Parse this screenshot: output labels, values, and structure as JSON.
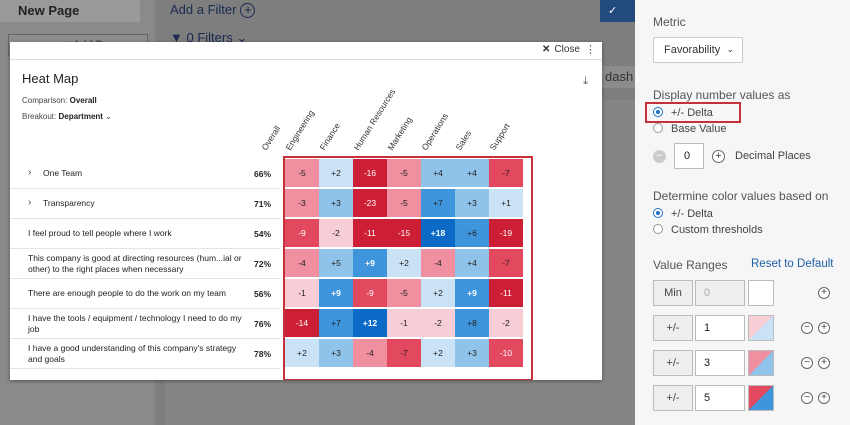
{
  "background": {
    "page_name": "New Page",
    "add_page": "+ Add Page",
    "add_filter": "Add a Filter",
    "filters": "0 Filters",
    "dash_text": "dash"
  },
  "modal": {
    "close_label": "Close",
    "title": "Heat Map",
    "comparison_label": "Comparison:",
    "comparison_value": "Overall",
    "breakout_label": "Breakout:",
    "breakout_value": "Department",
    "columns": [
      "Overall",
      "Engineering",
      "Finance",
      "Human Resources",
      "Marketing",
      "Operations",
      "Sales",
      "Support"
    ],
    "rows": [
      {
        "label": "One Team",
        "expandable": true,
        "overall": "66%",
        "values": [
          "-5",
          "+2",
          "-16",
          "-5",
          "+4",
          "+4",
          "-7"
        ]
      },
      {
        "label": "Transparency",
        "expandable": true,
        "overall": "71%",
        "values": [
          "-3",
          "+3",
          "-23",
          "-5",
          "+7",
          "+3",
          "+1"
        ]
      },
      {
        "label": "I feel proud to tell people where I work",
        "expandable": false,
        "overall": "54%",
        "values": [
          "-9",
          "-2",
          "-11",
          "-15",
          "+18",
          "+6",
          "-19"
        ]
      },
      {
        "label": "This company is good at directing resources (hum...ial or other) to the right places when necessary",
        "expandable": false,
        "overall": "72%",
        "values": [
          "-4",
          "+5",
          "+9",
          "+2",
          "-4",
          "+4",
          "-7"
        ]
      },
      {
        "label": "There are enough people to do the work on my team",
        "expandable": false,
        "overall": "56%",
        "values": [
          "-1",
          "+9",
          "-9",
          "-5",
          "+2",
          "+9",
          "-11"
        ]
      },
      {
        "label": "I have the tools / equipment / technology I need to do my job",
        "expandable": false,
        "overall": "76%",
        "values": [
          "-14",
          "+7",
          "+12",
          "-1",
          "-2",
          "+8",
          "-2"
        ]
      },
      {
        "label": "I have a good understanding of this company's strategy and goals",
        "expandable": false,
        "overall": "78%",
        "values": [
          "+2",
          "+3",
          "-4",
          "-7",
          "+2",
          "+3",
          "-10"
        ]
      }
    ]
  },
  "panel": {
    "metric_label": "Metric",
    "metric_value": "Favorability",
    "display_label": "Display number values as",
    "display_options": [
      "+/- Delta",
      "Base Value"
    ],
    "decimal_value": "0",
    "decimal_label": "Decimal Places",
    "color_label": "Determine color values based on",
    "color_options": [
      "+/- Delta",
      "Custom thresholds"
    ],
    "ranges_label": "Value Ranges",
    "reset_label": "Reset to Default",
    "ranges": [
      {
        "btn": "Min",
        "value": "0"
      },
      {
        "btn": "+/-",
        "value": "1"
      },
      {
        "btn": "+/-",
        "value": "3"
      },
      {
        "btn": "+/-",
        "value": "5"
      }
    ]
  },
  "colors": {
    "positive": [
      "#c9e2f5",
      "#8fc3ea",
      "#3f95dc",
      "#0b6ac6"
    ],
    "negative": [
      "#f7cdd6",
      "#ef8fa0",
      "#e2485e",
      "#cc1e35"
    ],
    "accent": "#1f5fa8",
    "highlight": "#c6303a"
  }
}
